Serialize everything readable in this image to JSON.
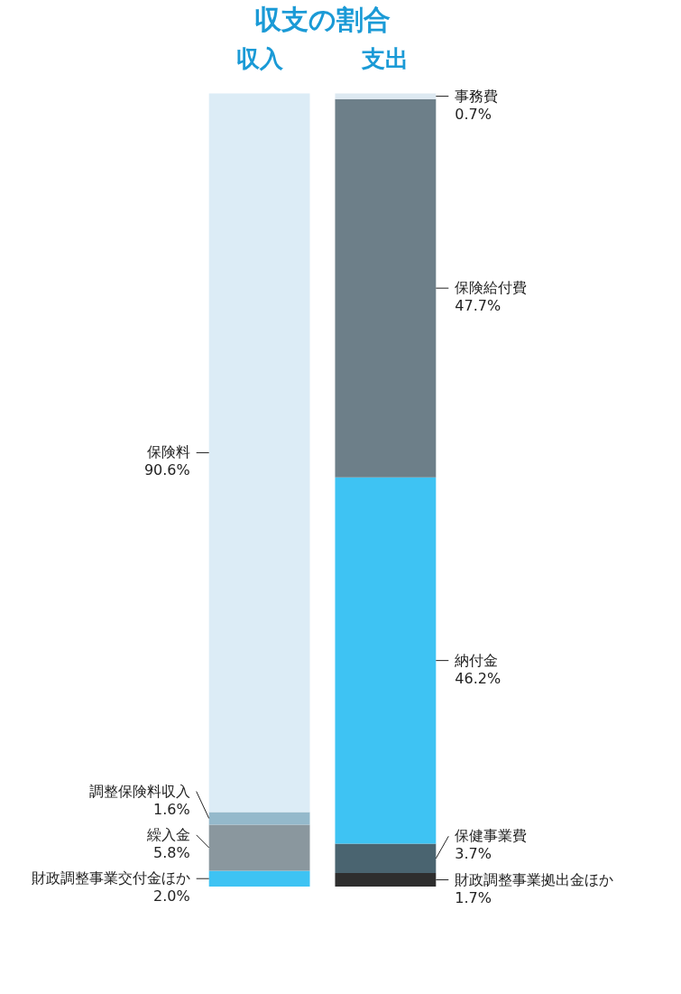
{
  "chart_data": {
    "type": "bar",
    "title": "収支の割合",
    "categories": [
      "収入",
      "支出"
    ],
    "stacked": true,
    "legend": false,
    "series": [
      {
        "name": "財政調整事業交付金ほか",
        "color": "#3ec3f3",
        "values": [
          2.0,
          null
        ],
        "value_labels": [
          "2.0%",
          null
        ]
      },
      {
        "name": "繰入金",
        "color": "#8a979e",
        "values": [
          5.8,
          null
        ],
        "value_labels": [
          "5.8%",
          null
        ]
      },
      {
        "name": "調整保険料収入",
        "color": "#94b9cb",
        "values": [
          1.6,
          null
        ],
        "value_labels": [
          "1.6%",
          null
        ]
      },
      {
        "name": "保険料",
        "color": "#dcecf6",
        "values": [
          90.6,
          null
        ],
        "value_labels": [
          "90.6%",
          null
        ]
      },
      {
        "name": "財政調整事業拠出金ほか",
        "color": "#2e2e2e",
        "values": [
          null,
          1.7
        ],
        "value_labels": [
          null,
          "1.7%"
        ]
      },
      {
        "name": "保健事業費",
        "color": "#4a6470",
        "values": [
          null,
          3.7
        ],
        "value_labels": [
          null,
          "3.7%"
        ]
      },
      {
        "name": "納付金",
        "color": "#3ec3f3",
        "values": [
          null,
          46.2
        ],
        "value_labels": [
          null,
          "46.2%"
        ]
      },
      {
        "name": "保険給付費",
        "color": "#6d7f89",
        "values": [
          null,
          47.7
        ],
        "value_labels": [
          null,
          "47.7%"
        ]
      },
      {
        "name": "事務費",
        "color": "#dde9f1",
        "values": [
          null,
          0.7
        ],
        "value_labels": [
          null,
          "0.7%"
        ]
      }
    ]
  }
}
